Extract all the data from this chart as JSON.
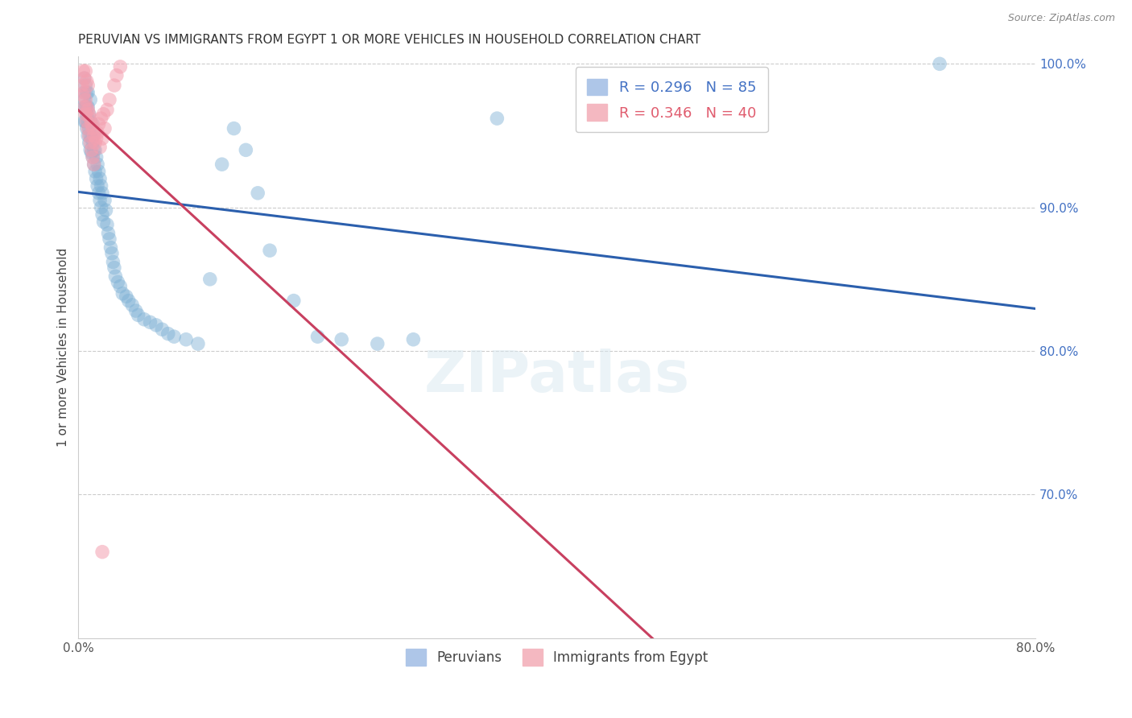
{
  "title": "PERUVIAN VS IMMIGRANTS FROM EGYPT 1 OR MORE VEHICLES IN HOUSEHOLD CORRELATION CHART",
  "source": "Source: ZipAtlas.com",
  "ylabel": "1 or more Vehicles in Household",
  "x_min": 0.0,
  "x_max": 0.8,
  "y_min": 0.6,
  "y_max": 1.005,
  "y_ticks": [
    0.7,
    0.8,
    0.9,
    1.0
  ],
  "y_tick_labels": [
    "70.0%",
    "80.0%",
    "90.0%",
    "100.0%"
  ],
  "x_ticks": [
    0.0,
    0.1,
    0.2,
    0.3,
    0.4,
    0.5,
    0.6,
    0.7,
    0.8
  ],
  "x_tick_labels": [
    "0.0%",
    "",
    "",
    "",
    "",
    "",
    "",
    "",
    "80.0%"
  ],
  "legend_entries": [
    {
      "label": "R = 0.296   N = 85",
      "color": "#aec6e8",
      "text_color": "#4472c4"
    },
    {
      "label": "R = 0.346   N = 40",
      "color": "#f4b8c1",
      "text_color": "#e05c6e"
    }
  ],
  "blue_color": "#7bafd4",
  "pink_color": "#f4a0b0",
  "trendline_blue": "#2b5fad",
  "trendline_pink": "#c84060",
  "peruvian_x": [
    0.005,
    0.005,
    0.005,
    0.005,
    0.005,
    0.006,
    0.006,
    0.006,
    0.007,
    0.007,
    0.007,
    0.007,
    0.008,
    0.008,
    0.008,
    0.008,
    0.009,
    0.009,
    0.009,
    0.01,
    0.01,
    0.01,
    0.01,
    0.011,
    0.011,
    0.012,
    0.012,
    0.012,
    0.013,
    0.013,
    0.013,
    0.014,
    0.014,
    0.015,
    0.015,
    0.016,
    0.016,
    0.017,
    0.017,
    0.018,
    0.018,
    0.019,
    0.019,
    0.02,
    0.02,
    0.021,
    0.022,
    0.023,
    0.024,
    0.025,
    0.026,
    0.027,
    0.028,
    0.029,
    0.03,
    0.031,
    0.033,
    0.035,
    0.037,
    0.04,
    0.042,
    0.045,
    0.048,
    0.05,
    0.055,
    0.06,
    0.065,
    0.07,
    0.075,
    0.08,
    0.09,
    0.1,
    0.11,
    0.12,
    0.13,
    0.14,
    0.15,
    0.16,
    0.18,
    0.2,
    0.22,
    0.25,
    0.28,
    0.35,
    0.72
  ],
  "peruvian_y": [
    0.96,
    0.97,
    0.975,
    0.98,
    0.99,
    0.96,
    0.97,
    0.985,
    0.955,
    0.965,
    0.97,
    0.98,
    0.95,
    0.96,
    0.97,
    0.98,
    0.945,
    0.955,
    0.965,
    0.94,
    0.95,
    0.96,
    0.975,
    0.938,
    0.948,
    0.935,
    0.945,
    0.958,
    0.93,
    0.94,
    0.952,
    0.925,
    0.94,
    0.92,
    0.935,
    0.915,
    0.93,
    0.91,
    0.925,
    0.905,
    0.92,
    0.9,
    0.915,
    0.895,
    0.91,
    0.89,
    0.905,
    0.898,
    0.888,
    0.882,
    0.878,
    0.872,
    0.868,
    0.862,
    0.858,
    0.852,
    0.848,
    0.845,
    0.84,
    0.838,
    0.835,
    0.832,
    0.828,
    0.825,
    0.822,
    0.82,
    0.818,
    0.815,
    0.812,
    0.81,
    0.808,
    0.805,
    0.85,
    0.93,
    0.955,
    0.94,
    0.91,
    0.87,
    0.835,
    0.81,
    0.808,
    0.805,
    0.808,
    0.962,
    1.0
  ],
  "egypt_x": [
    0.003,
    0.004,
    0.004,
    0.005,
    0.005,
    0.005,
    0.006,
    0.006,
    0.006,
    0.007,
    0.007,
    0.007,
    0.008,
    0.008,
    0.008,
    0.009,
    0.009,
    0.01,
    0.01,
    0.011,
    0.011,
    0.012,
    0.012,
    0.013,
    0.013,
    0.014,
    0.015,
    0.016,
    0.017,
    0.018,
    0.019,
    0.02,
    0.021,
    0.022,
    0.024,
    0.026,
    0.03,
    0.032,
    0.035,
    0.02
  ],
  "egypt_y": [
    0.985,
    0.978,
    0.995,
    0.97,
    0.98,
    0.99,
    0.965,
    0.975,
    0.995,
    0.96,
    0.97,
    0.988,
    0.955,
    0.968,
    0.985,
    0.95,
    0.965,
    0.945,
    0.962,
    0.94,
    0.958,
    0.935,
    0.955,
    0.93,
    0.95,
    0.945,
    0.948,
    0.952,
    0.958,
    0.942,
    0.962,
    0.948,
    0.965,
    0.955,
    0.968,
    0.975,
    0.985,
    0.992,
    0.998,
    0.66
  ]
}
